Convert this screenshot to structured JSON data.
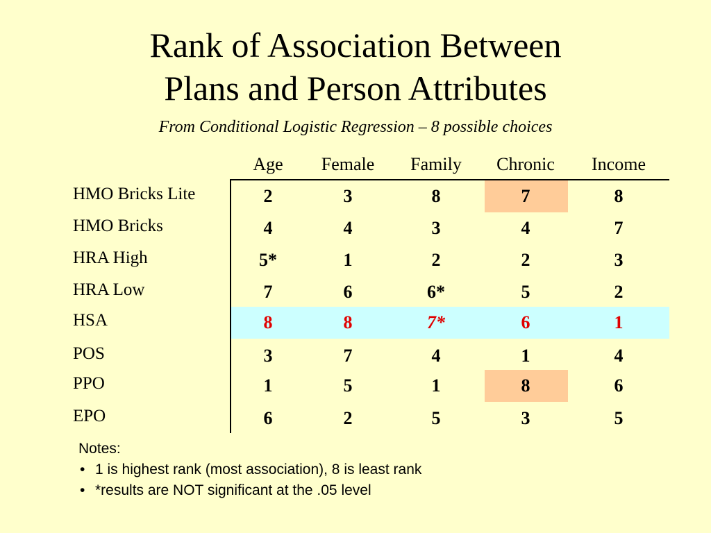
{
  "slide": {
    "title_line1": "Rank of Association Between",
    "title_line2": "Plans and Person Attributes",
    "subtitle": "From Conditional Logistic Regression – 8 possible choices"
  },
  "table": {
    "columns": [
      "Age",
      "Female",
      "Family",
      "Chronic",
      "Income"
    ],
    "rows": [
      {
        "label": "HMO Bricks Lite",
        "values": [
          "2",
          "3",
          "8",
          "7",
          "8"
        ]
      },
      {
        "label": "HMO Bricks",
        "values": [
          "4",
          "4",
          "3",
          "4",
          "7"
        ]
      },
      {
        "label": "HRA High",
        "values": [
          "5*",
          "1",
          "2",
          "2",
          "3"
        ]
      },
      {
        "label": "HRA Low",
        "values": [
          "7",
          "6",
          "6*",
          "5",
          "2"
        ]
      },
      {
        "label": "HSA",
        "values": [
          "8",
          "8",
          "7*",
          "6",
          "1"
        ]
      },
      {
        "label": "POS",
        "values": [
          "3",
          "7",
          "4",
          "1",
          "4"
        ]
      },
      {
        "label": "PPO",
        "values": [
          "1",
          "5",
          "1",
          "8",
          "6"
        ]
      },
      {
        "label": "EPO",
        "values": [
          "6",
          "2",
          "5",
          "3",
          "5"
        ]
      }
    ],
    "highlight_row": "HSA",
    "highlighted_cells": [
      {
        "row": "HMO Bricks Lite",
        "column": "Chronic"
      },
      {
        "row": "PPO",
        "column": "Chronic"
      }
    ],
    "colors": {
      "background": "#FFFFCC",
      "row_highlight": "#CCFFFF",
      "cell_highlight": "#FFCC99",
      "highlight_text": "#E00000"
    }
  },
  "notes": {
    "heading": "Notes:",
    "items": [
      "1 is highest rank (most association), 8 is least rank",
      "*results are NOT significant at the .05 level"
    ],
    "bullet": "•"
  }
}
